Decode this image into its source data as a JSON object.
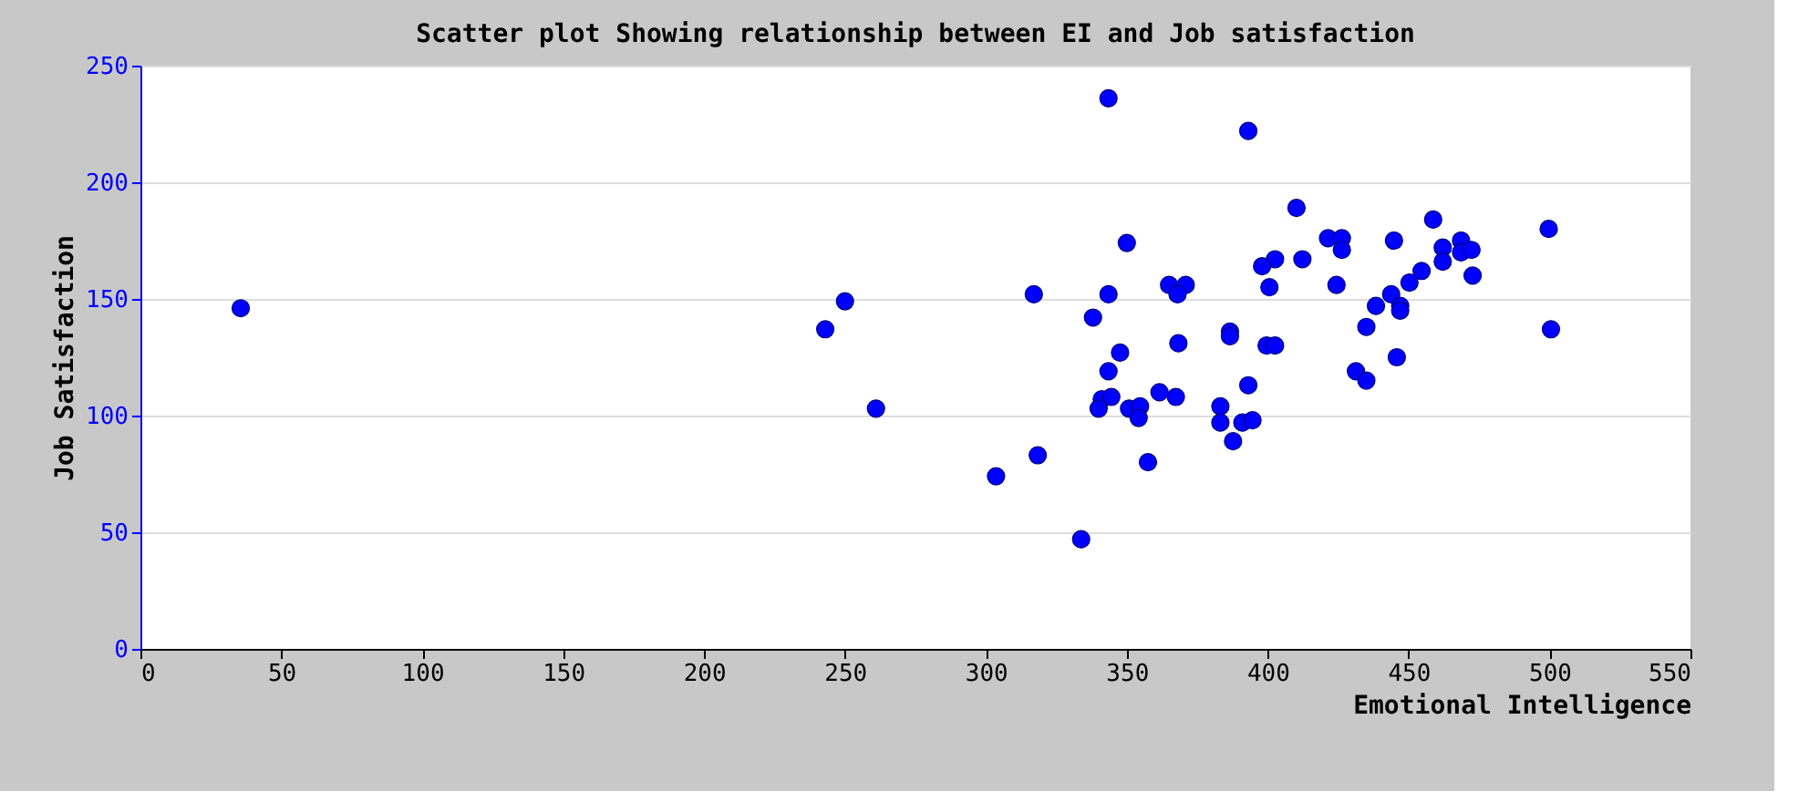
{
  "chart_data": {
    "type": "scatter",
    "title": "Scatter plot Showing relationship between EI and Job satisfaction",
    "xlabel": "Emotional Intelligence",
    "ylabel": "Job Satisfaction",
    "x": [
      343.5,
      393.1,
      410.2,
      350,
      421.4,
      426.3,
      426.3,
      402.6,
      412.3,
      398,
      424.4,
      400.6,
      365,
      370.9,
      368,
      317,
      343.5,
      338,
      386.6,
      386.6,
      368.3,
      399.6,
      402.6,
      431.3,
      347.6,
      343.5,
      393.1,
      341.1,
      344.5,
      361.6,
      367.4,
      340,
      350.8,
      354.7,
      354.2,
      383.2,
      383.2,
      391,
      394.6,
      387.7,
      318.4,
      357.5,
      303.6,
      333.8,
      444.8,
      458.7,
      499.7,
      462.1,
      468.6,
      468.6,
      472.3,
      462.1,
      472.7,
      454.6,
      450.3,
      443.8,
      447,
      447,
      438.4,
      435,
      445.8,
      435,
      500.5,
      35.6,
      243,
      250,
      261
    ],
    "values": [
      236,
      222,
      189,
      174,
      176,
      176,
      171,
      167,
      167,
      164,
      156,
      155,
      156,
      156,
      152,
      152,
      152,
      142,
      136,
      134,
      131,
      130,
      130,
      119,
      127,
      119,
      113,
      107,
      108,
      110,
      108,
      103,
      103,
      104,
      99,
      104,
      97,
      97,
      98,
      89,
      83,
      80,
      74,
      47,
      175,
      184,
      180,
      172,
      175,
      170,
      171,
      166,
      160,
      162,
      157,
      152,
      147,
      145,
      147,
      138,
      125,
      115,
      137,
      146,
      137,
      149,
      103
    ],
    "color": "#0000ff",
    "marker": "circle",
    "xlim": [
      0,
      550
    ],
    "ylim": [
      0,
      250
    ],
    "xticks": [
      0,
      50,
      100,
      150,
      200,
      250,
      300,
      350,
      400,
      450,
      500,
      550
    ],
    "yticks": [
      0,
      50,
      100,
      150,
      200,
      250
    ],
    "grid": "y"
  }
}
